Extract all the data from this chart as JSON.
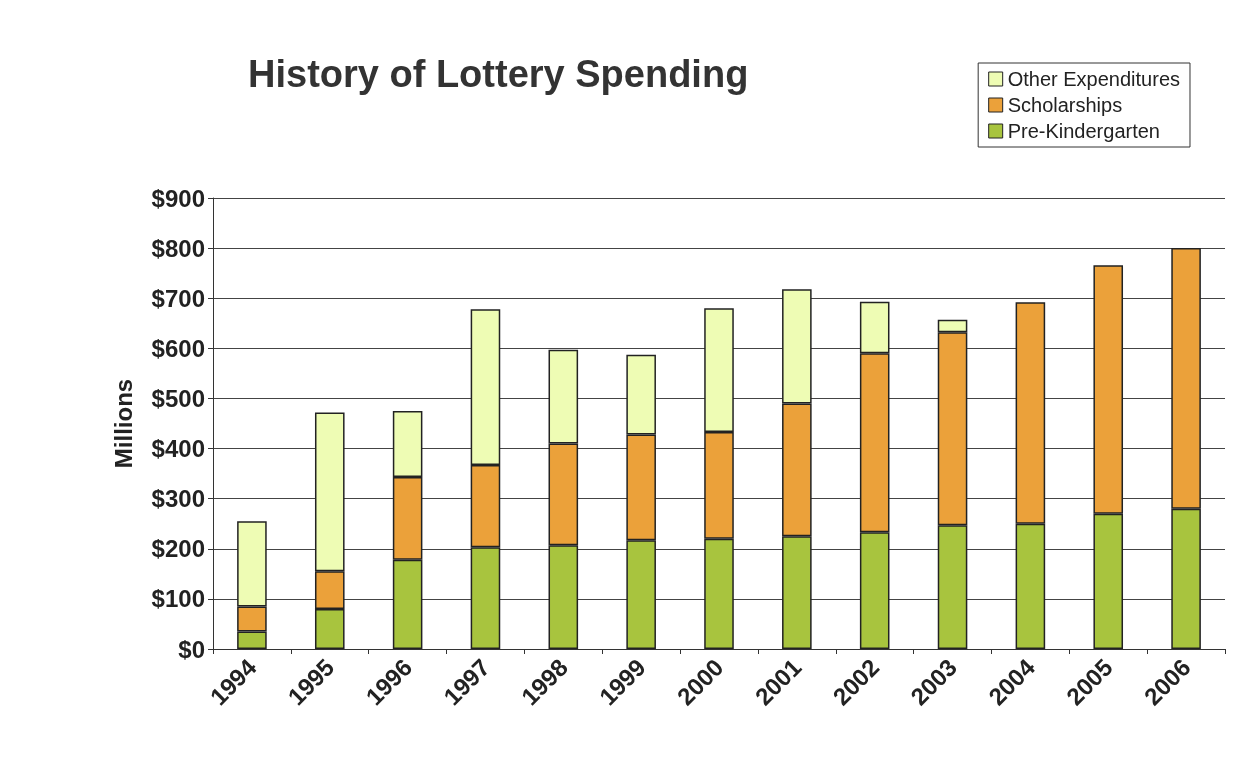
{
  "chart_data": {
    "type": "bar",
    "title": "History of Lottery Spending",
    "ylabel": "Millions",
    "stacked": true,
    "categories": [
      "1994",
      "1995",
      "1996",
      "1997",
      "1998",
      "1999",
      "2000",
      "2001",
      "2002",
      "2003",
      "2004",
      "2005",
      "2006"
    ],
    "series": [
      {
        "name": "Pre-Kindergarten",
        "color": "#a8c43e",
        "values": [
          35,
          80,
          178,
          203,
          207,
          217,
          220,
          225,
          233,
          247,
          250,
          270,
          280
        ]
      },
      {
        "name": "Scholarships",
        "color": "#eba13a",
        "values": [
          50,
          75,
          165,
          164,
          203,
          211,
          213,
          265,
          357,
          385,
          442,
          496,
          520
        ]
      },
      {
        "name": "Other Expenditures",
        "color": "#eefcb4",
        "values": [
          170,
          317,
          132,
          311,
          187,
          159,
          247,
          228,
          103,
          25,
          null,
          null,
          null
        ]
      }
    ],
    "ylim": [
      0,
      900
    ],
    "yticks": [
      {
        "value": 0,
        "label": "$0"
      },
      {
        "value": 100,
        "label": "$100"
      },
      {
        "value": 200,
        "label": "$200"
      },
      {
        "value": 300,
        "label": "$300"
      },
      {
        "value": 400,
        "label": "$400"
      },
      {
        "value": 500,
        "label": "$500"
      },
      {
        "value": 600,
        "label": "$600"
      },
      {
        "value": 700,
        "label": "$700"
      },
      {
        "value": 800,
        "label": "$800"
      },
      {
        "value": 900,
        "label": "$900"
      }
    ],
    "grid": "y",
    "legend": "top right"
  }
}
